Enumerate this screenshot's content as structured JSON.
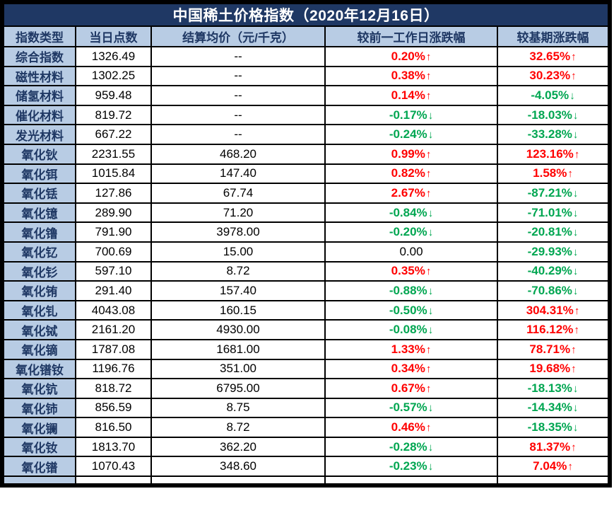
{
  "chart_data": {
    "type": "table",
    "title": "中国稀土价格指数（2020年12月16日）",
    "columns": [
      "指数类型",
      "当日点数",
      "结算均价（元/千克）",
      "较前一工作日涨跌幅",
      "较基期涨跌幅"
    ],
    "rows": [
      {
        "name": "综合指数",
        "points": "1326.49",
        "price": "--",
        "day": "0.20%",
        "day_trend": "up",
        "base": "32.65%",
        "base_trend": "up"
      },
      {
        "name": "磁性材料",
        "points": "1302.25",
        "price": "--",
        "day": "0.38%",
        "day_trend": "up",
        "base": "30.23%",
        "base_trend": "up"
      },
      {
        "name": "储氢材料",
        "points": "959.48",
        "price": "--",
        "day": "0.14%",
        "day_trend": "up",
        "base": "-4.05%",
        "base_trend": "down"
      },
      {
        "name": "催化材料",
        "points": "819.72",
        "price": "--",
        "day": "-0.17%",
        "day_trend": "down",
        "base": "-18.03%",
        "base_trend": "down"
      },
      {
        "name": "发光材料",
        "points": "667.22",
        "price": "--",
        "day": "-0.24%",
        "day_trend": "down",
        "base": "-33.28%",
        "base_trend": "down"
      },
      {
        "name": "氧化钬",
        "points": "2231.55",
        "price": "468.20",
        "day": "0.99%",
        "day_trend": "up",
        "base": "123.16%",
        "base_trend": "up"
      },
      {
        "name": "氧化铒",
        "points": "1015.84",
        "price": "147.40",
        "day": "0.82%",
        "day_trend": "up",
        "base": "1.58%",
        "base_trend": "up"
      },
      {
        "name": "氧化铥",
        "points": "127.86",
        "price": "67.74",
        "day": "2.67%",
        "day_trend": "up",
        "base": "-87.21%",
        "base_trend": "down"
      },
      {
        "name": "氧化镱",
        "points": "289.90",
        "price": "71.20",
        "day": "-0.84%",
        "day_trend": "down",
        "base": "-71.01%",
        "base_trend": "down"
      },
      {
        "name": "氧化镥",
        "points": "791.90",
        "price": "3978.00",
        "day": "-0.20%",
        "day_trend": "down",
        "base": "-20.81%",
        "base_trend": "down"
      },
      {
        "name": "氧化钇",
        "points": "700.69",
        "price": "15.00",
        "day": "0.00",
        "day_trend": "flat",
        "base": "-29.93%",
        "base_trend": "down"
      },
      {
        "name": "氧化钐",
        "points": "597.10",
        "price": "8.72",
        "day": "0.35%",
        "day_trend": "up",
        "base": "-40.29%",
        "base_trend": "down"
      },
      {
        "name": "氧化铕",
        "points": "291.40",
        "price": "157.40",
        "day": "-0.88%",
        "day_trend": "down",
        "base": "-70.86%",
        "base_trend": "down"
      },
      {
        "name": "氧化钆",
        "points": "4043.08",
        "price": "160.15",
        "day": "-0.50%",
        "day_trend": "down",
        "base": "304.31%",
        "base_trend": "up"
      },
      {
        "name": "氧化铽",
        "points": "2161.20",
        "price": "4930.00",
        "day": "-0.08%",
        "day_trend": "down",
        "base": "116.12%",
        "base_trend": "up"
      },
      {
        "name": "氧化镝",
        "points": "1787.08",
        "price": "1681.00",
        "day": "1.33%",
        "day_trend": "up",
        "base": "78.71%",
        "base_trend": "up"
      },
      {
        "name": "氧化镨钕",
        "points": "1196.76",
        "price": "351.00",
        "day": "0.34%",
        "day_trend": "up",
        "base": "19.68%",
        "base_trend": "up"
      },
      {
        "name": "氧化钪",
        "points": "818.72",
        "price": "6795.00",
        "day": "0.67%",
        "day_trend": "up",
        "base": "-18.13%",
        "base_trend": "down"
      },
      {
        "name": "氧化铈",
        "points": "856.59",
        "price": "8.75",
        "day": "-0.57%",
        "day_trend": "down",
        "base": "-14.34%",
        "base_trend": "down"
      },
      {
        "name": "氧化镧",
        "points": "816.50",
        "price": "8.72",
        "day": "0.46%",
        "day_trend": "up",
        "base": "-18.35%",
        "base_trend": "down"
      },
      {
        "name": "氧化钕",
        "points": "1813.70",
        "price": "362.20",
        "day": "-0.28%",
        "day_trend": "down",
        "base": "81.37%",
        "base_trend": "up"
      },
      {
        "name": "氧化镨",
        "points": "1070.43",
        "price": "348.60",
        "day": "-0.23%",
        "day_trend": "down",
        "base": "7.04%",
        "base_trend": "up"
      }
    ]
  },
  "icons": {
    "up_arrow": "↑",
    "down_arrow": "↓"
  },
  "colors": {
    "title_bar_navy": "#1F3864",
    "header_light_blue": "#B8CCE4",
    "up_red": "#FF0000",
    "down_green": "#00A651",
    "grid_border": "#000000"
  }
}
